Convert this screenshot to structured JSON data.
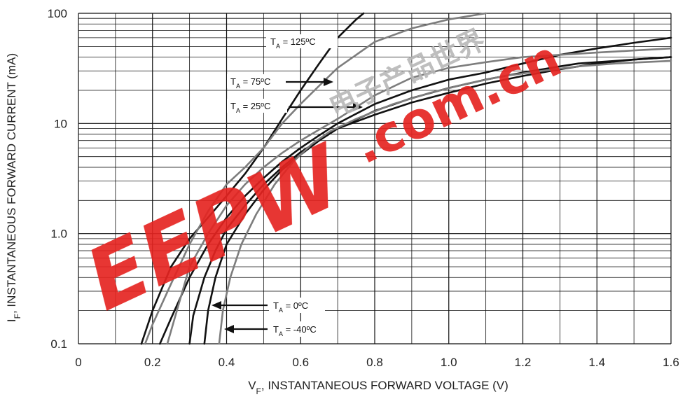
{
  "chart_data": {
    "type": "line",
    "xlabel": {
      "main": "V",
      "sub": "F",
      "rest": ", INSTANTANEOUS FORWARD VOLTAGE (V)"
    },
    "ylabel": {
      "main": "I",
      "sub": "F",
      "rest": ", INSTANTANEOUS FORWARD CURRENT (mA)"
    },
    "xlim": [
      0,
      1.6
    ],
    "ylim": [
      0.1,
      100
    ],
    "yscale": "log",
    "grid": true,
    "x_ticks": [
      {
        "value": 0,
        "label": "0"
      },
      {
        "value": 0.2,
        "label": "0.2"
      },
      {
        "value": 0.4,
        "label": "0.4"
      },
      {
        "value": 0.6,
        "label": "0.6"
      },
      {
        "value": 0.8,
        "label": "0.8"
      },
      {
        "value": 1.0,
        "label": "1.0"
      },
      {
        "value": 1.2,
        "label": "1.2"
      },
      {
        "value": 1.4,
        "label": "1.4"
      },
      {
        "value": 1.6,
        "label": "1.6"
      }
    ],
    "y_ticks": [
      {
        "value": 0.1,
        "label": "0.1"
      },
      {
        "value": 1,
        "label": "1.0"
      },
      {
        "value": 10,
        "label": "10"
      },
      {
        "value": 100,
        "label": "100"
      }
    ],
    "series": [
      {
        "name": "T_A = 125ºC",
        "color": "#111111",
        "points": [
          [
            0.17,
            0.1
          ],
          [
            0.2,
            0.2
          ],
          [
            0.25,
            0.5
          ],
          [
            0.3,
            0.9
          ],
          [
            0.35,
            1.4
          ],
          [
            0.4,
            2.2
          ],
          [
            0.45,
            3.5
          ],
          [
            0.5,
            6
          ],
          [
            0.55,
            11
          ],
          [
            0.6,
            20
          ],
          [
            0.65,
            35
          ],
          [
            0.7,
            60
          ],
          [
            0.75,
            88
          ],
          [
            0.77,
            100
          ]
        ]
      },
      {
        "name": "T_A = 75ºC",
        "color": "#7d7d7d",
        "points": [
          [
            0.18,
            0.1
          ],
          [
            0.2,
            0.15
          ],
          [
            0.25,
            0.35
          ],
          [
            0.3,
            0.8
          ],
          [
            0.35,
            1.6
          ],
          [
            0.4,
            2.8
          ],
          [
            0.45,
            4
          ],
          [
            0.5,
            6
          ],
          [
            0.55,
            10
          ],
          [
            0.6,
            15
          ],
          [
            0.65,
            22
          ],
          [
            0.7,
            32
          ],
          [
            0.8,
            55
          ],
          [
            0.9,
            73
          ],
          [
            1.0,
            88
          ],
          [
            1.1,
            100
          ]
        ]
      },
      {
        "name": "T_A = 25ºC",
        "color": "#111111",
        "points": [
          [
            0.22,
            0.1
          ],
          [
            0.25,
            0.17
          ],
          [
            0.3,
            0.4
          ],
          [
            0.35,
            0.8
          ],
          [
            0.4,
            1.4
          ],
          [
            0.45,
            2.2
          ],
          [
            0.5,
            3.2
          ],
          [
            0.55,
            4.5
          ],
          [
            0.6,
            6
          ],
          [
            0.65,
            7.8
          ],
          [
            0.7,
            10
          ],
          [
            0.8,
            15
          ],
          [
            0.9,
            20
          ],
          [
            1.0,
            25
          ],
          [
            1.1,
            29
          ],
          [
            1.2,
            35
          ],
          [
            1.3,
            42
          ],
          [
            1.4,
            48
          ],
          [
            1.5,
            54
          ],
          [
            1.6,
            60
          ]
        ]
      },
      {
        "name": "T_A = 25ºC (2)",
        "color": "#7d7d7d",
        "points": [
          [
            0.24,
            0.1
          ],
          [
            0.3,
            0.5
          ],
          [
            0.35,
            1.0
          ],
          [
            0.4,
            1.8
          ],
          [
            0.45,
            2.8
          ],
          [
            0.5,
            4
          ],
          [
            0.55,
            5.4
          ],
          [
            0.6,
            7
          ],
          [
            0.65,
            8.8
          ],
          [
            0.7,
            11
          ],
          [
            0.8,
            18
          ],
          [
            0.9,
            26
          ],
          [
            1.0,
            32
          ],
          [
            1.1,
            36
          ],
          [
            1.2,
            40
          ],
          [
            1.3,
            42
          ],
          [
            1.4,
            44
          ],
          [
            1.5,
            46
          ],
          [
            1.6,
            48
          ]
        ]
      },
      {
        "name": "T_A = 0ºC",
        "color": "#111111",
        "points": [
          [
            0.3,
            0.1
          ],
          [
            0.31,
            0.18
          ],
          [
            0.34,
            0.4
          ],
          [
            0.37,
            0.7
          ],
          [
            0.4,
            1.1
          ],
          [
            0.45,
            1.8
          ],
          [
            0.5,
            2.8
          ],
          [
            0.55,
            4
          ],
          [
            0.6,
            5.5
          ],
          [
            0.65,
            7
          ],
          [
            0.7,
            9
          ],
          [
            0.8,
            12
          ],
          [
            0.9,
            15.5
          ],
          [
            1.0,
            19
          ],
          [
            1.1,
            23
          ],
          [
            1.2,
            27
          ],
          [
            1.3,
            31
          ],
          [
            1.4,
            35
          ],
          [
            1.5,
            38
          ],
          [
            1.6,
            40
          ]
        ]
      },
      {
        "name": "T_A = -40ºC",
        "color": "#111111",
        "points": [
          [
            0.34,
            0.1
          ],
          [
            0.35,
            0.2
          ],
          [
            0.37,
            0.4
          ],
          [
            0.4,
            0.8
          ],
          [
            0.45,
            1.5
          ],
          [
            0.5,
            2.5
          ],
          [
            0.55,
            3.8
          ],
          [
            0.6,
            5.2
          ],
          [
            0.65,
            7
          ],
          [
            0.7,
            9
          ],
          [
            0.8,
            13
          ],
          [
            0.9,
            17
          ],
          [
            1.0,
            21
          ],
          [
            1.1,
            25
          ],
          [
            1.2,
            29
          ],
          [
            1.3,
            33
          ],
          [
            1.35,
            35
          ],
          [
            1.4,
            36
          ],
          [
            1.5,
            38
          ],
          [
            1.6,
            40
          ]
        ]
      },
      {
        "name": "T_A = -40ºC (2)",
        "color": "#7d7d7d",
        "points": [
          [
            0.38,
            0.1
          ],
          [
            0.39,
            0.2
          ],
          [
            0.41,
            0.4
          ],
          [
            0.44,
            0.8
          ],
          [
            0.48,
            1.5
          ],
          [
            0.53,
            2.8
          ],
          [
            0.58,
            4.5
          ],
          [
            0.63,
            6.5
          ],
          [
            0.68,
            8.5
          ],
          [
            0.75,
            11
          ],
          [
            0.85,
            15
          ],
          [
            0.95,
            19
          ],
          [
            1.05,
            23
          ],
          [
            1.15,
            27
          ],
          [
            1.25,
            30
          ],
          [
            1.35,
            33
          ],
          [
            1.45,
            35
          ],
          [
            1.6,
            37
          ]
        ]
      }
    ],
    "annotations": [
      {
        "id": "t125",
        "main": "T",
        "sub": "A",
        "rest": " = 125ºC"
      },
      {
        "id": "t75",
        "main": "T",
        "sub": "A",
        "rest": " = 75ºC"
      },
      {
        "id": "t25",
        "main": "T",
        "sub": "A",
        "rest": " = 25ºC"
      },
      {
        "id": "t0",
        "main": "T",
        "sub": "A",
        "rest": " = 0ºC"
      },
      {
        "id": "tm40",
        "main": "T",
        "sub": "A",
        "rest": " = -40ºC"
      }
    ]
  },
  "watermark": {
    "logo": "EEPW",
    "domain": ".com.cn",
    "cn_text": "电子产品世界",
    "color": "#e52421"
  }
}
